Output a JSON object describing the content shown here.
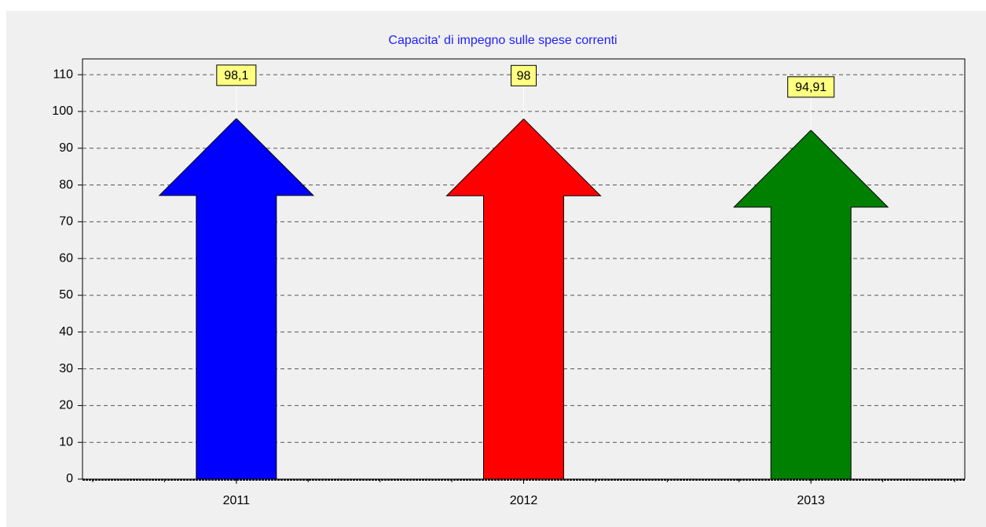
{
  "chart_data": {
    "type": "arrow-bar",
    "title": "Capacita' di impegno sulle spese correnti",
    "categories": [
      "2011",
      "2012",
      "2013"
    ],
    "values": [
      98.1,
      98,
      94.91
    ],
    "value_labels": [
      "98,1",
      "98",
      "94,91"
    ],
    "colors": [
      "#0000ff",
      "#ff0000",
      "#008000"
    ],
    "ylim": [
      0,
      114.3
    ],
    "yticks": [
      0,
      10,
      20,
      30,
      40,
      50,
      60,
      70,
      80,
      90,
      100,
      110
    ],
    "grid": true
  }
}
